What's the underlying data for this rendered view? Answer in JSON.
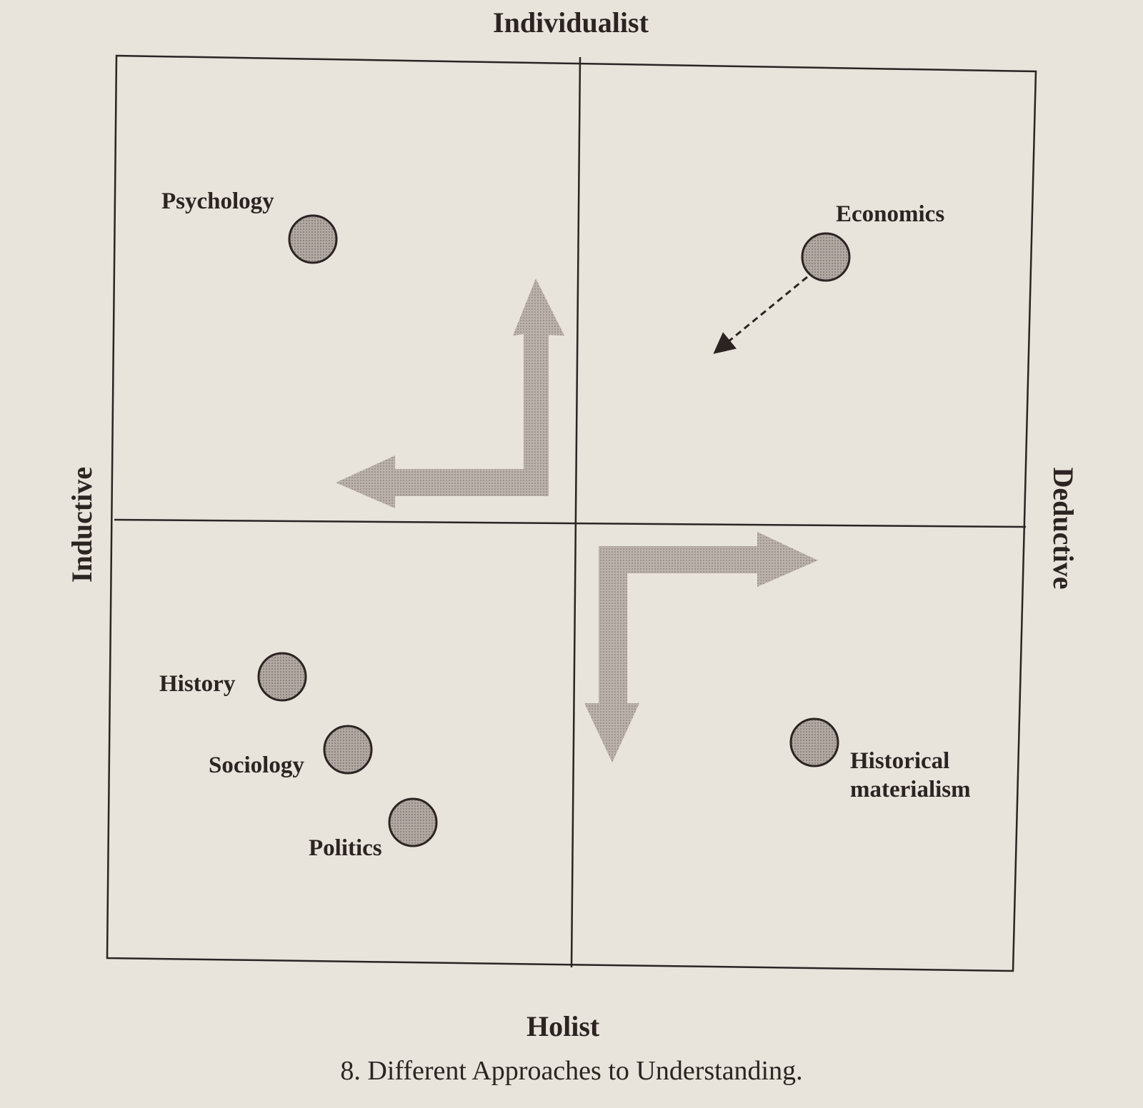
{
  "axes": {
    "top": "Individualist",
    "bottom": "Holist",
    "left": "Inductive",
    "right": "Deductive"
  },
  "nodes": [
    {
      "label": "Psychology"
    },
    {
      "label": "Economics"
    },
    {
      "label": "History"
    },
    {
      "label": "Sociology"
    },
    {
      "label": "Politics"
    },
    {
      "label": "Historical materialism"
    }
  ],
  "caption": "8. Different Approaches to Understanding."
}
